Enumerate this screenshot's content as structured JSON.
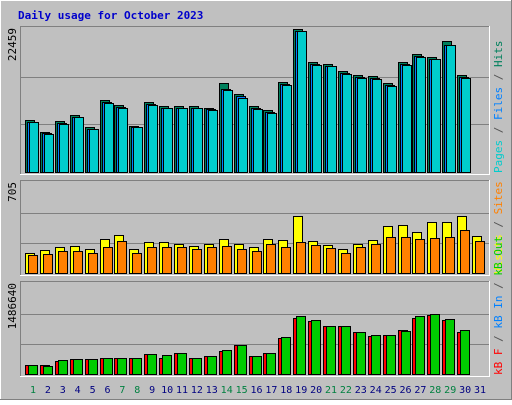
{
  "title": "Daily usage for October 2023",
  "colors": {
    "background": "#c0c0c0",
    "title": "#0000cc",
    "border_light": "#ffffff",
    "border_dark": "#808080",
    "grid": "#808080",
    "label_gray": "#555555",
    "weekday": "#000080",
    "weekend": "#008040"
  },
  "days": [
    "1",
    "2",
    "3",
    "4",
    "5",
    "6",
    "7",
    "8",
    "9",
    "10",
    "11",
    "12",
    "13",
    "14",
    "15",
    "16",
    "17",
    "18",
    "19",
    "20",
    "21",
    "22",
    "23",
    "24",
    "25",
    "26",
    "27",
    "28",
    "29",
    "30",
    "31"
  ],
  "weekend_days": [
    1,
    7,
    8,
    14,
    15,
    21,
    22,
    28,
    29
  ],
  "panels": {
    "top": {
      "max_label": "22459",
      "legend": [
        {
          "text": "Pages",
          "color": "#00cccc"
        },
        {
          "text": " / ",
          "color": "#555555"
        },
        {
          "text": "Files",
          "color": "#0080ff"
        },
        {
          "text": " / ",
          "color": "#555555"
        },
        {
          "text": "Hits",
          "color": "#00805c"
        }
      ]
    },
    "middle": {
      "max_label": "705",
      "legend": [
        {
          "text": "Visits",
          "color": "#ffff00"
        },
        {
          "text": " / ",
          "color": "#555555"
        },
        {
          "text": "Sites",
          "color": "#ff8000"
        }
      ]
    },
    "bottom": {
      "max_label": "1486640",
      "legend": [
        {
          "text": "kB F",
          "color": "#ff0000"
        },
        {
          "text": " / ",
          "color": "#555555"
        },
        {
          "text": "kB In",
          "color": "#0080ff"
        },
        {
          "text": " / ",
          "color": "#555555"
        },
        {
          "text": "kB Out",
          "color": "#00cc00"
        }
      ]
    }
  },
  "chart_data": [
    {
      "type": "bar",
      "panel": "top",
      "categories": [
        "1",
        "2",
        "3",
        "4",
        "5",
        "6",
        "7",
        "8",
        "9",
        "10",
        "11",
        "12",
        "13",
        "14",
        "15",
        "16",
        "17",
        "18",
        "19",
        "20",
        "21",
        "22",
        "23",
        "24",
        "25",
        "26",
        "27",
        "28",
        "29",
        "30",
        "31"
      ],
      "ylim": [
        0,
        22459
      ],
      "series": [
        {
          "name": "Hits",
          "color": "#00805c",
          "values": [
            8200,
            6300,
            8000,
            9000,
            7000,
            11300,
            10500,
            7300,
            11000,
            10300,
            10300,
            10300,
            10100,
            13900,
            12300,
            10300,
            9700,
            14100,
            22500,
            17200,
            17000,
            15900,
            15300,
            15100,
            13900,
            17300,
            18500,
            18100,
            20500,
            15300,
            0
          ]
        },
        {
          "name": "Files",
          "color": "#0080ff",
          "values": [
            7900,
            6100,
            7700,
            8700,
            6800,
            11000,
            10200,
            7100,
            10700,
            10100,
            10100,
            10100,
            9900,
            13100,
            11900,
            10000,
            9400,
            13800,
            22200,
            16900,
            16700,
            15500,
            14900,
            14800,
            13600,
            17000,
            18200,
            17800,
            20000,
            14900,
            0
          ]
        },
        {
          "name": "Pages",
          "color": "#00cccc",
          "values": [
            7800,
            6000,
            7600,
            8600,
            6700,
            10900,
            10100,
            7000,
            10600,
            10000,
            10000,
            10000,
            9800,
            12900,
            11700,
            9900,
            9300,
            13700,
            22100,
            16800,
            16600,
            15400,
            14800,
            14600,
            13500,
            16800,
            18100,
            17700,
            19900,
            14800,
            0
          ]
        }
      ]
    },
    {
      "type": "bar",
      "panel": "middle",
      "categories": [
        "1",
        "2",
        "3",
        "4",
        "5",
        "6",
        "7",
        "8",
        "9",
        "10",
        "11",
        "12",
        "13",
        "14",
        "15",
        "16",
        "17",
        "18",
        "19",
        "20",
        "21",
        "22",
        "23",
        "24",
        "25",
        "26",
        "27",
        "28",
        "29",
        "30",
        "31"
      ],
      "ylim": [
        0,
        705
      ],
      "series": [
        {
          "name": "Visits",
          "color": "#ffff00",
          "values": [
            160,
            180,
            200,
            210,
            190,
            270,
            300,
            185,
            240,
            240,
            230,
            210,
            230,
            270,
            230,
            200,
            270,
            255,
            445,
            250,
            220,
            190,
            225,
            260,
            370,
            375,
            320,
            400,
            400,
            445,
            290
          ]
        },
        {
          "name": "Sites",
          "color": "#ff8000",
          "values": [
            140,
            150,
            170,
            175,
            155,
            205,
            250,
            160,
            200,
            205,
            200,
            185,
            205,
            210,
            190,
            175,
            230,
            200,
            245,
            220,
            195,
            160,
            200,
            225,
            280,
            280,
            270,
            275,
            285,
            340,
            250
          ]
        }
      ]
    },
    {
      "type": "bar",
      "panel": "bottom",
      "categories": [
        "1",
        "2",
        "3",
        "4",
        "5",
        "6",
        "7",
        "8",
        "9",
        "10",
        "11",
        "12",
        "13",
        "14",
        "15",
        "16",
        "17",
        "18",
        "19",
        "20",
        "21",
        "22",
        "23",
        "24",
        "25",
        "26",
        "27",
        "28",
        "29",
        "30",
        "31"
      ],
      "ylim": [
        0,
        1486640
      ],
      "series": [
        {
          "name": "kB F",
          "color": "#ff0000",
          "values": [
            150000,
            150000,
            220000,
            250000,
            250000,
            260000,
            270000,
            270000,
            330000,
            270000,
            340000,
            270000,
            290000,
            380000,
            480000,
            290000,
            340000,
            600000,
            930000,
            870000,
            800000,
            790000,
            690000,
            630000,
            640000,
            730000,
            930000,
            970000,
            890000,
            700000,
            0
          ]
        },
        {
          "name": "kB Out",
          "color": "#00cc00",
          "values": [
            150000,
            140000,
            230000,
            250000,
            250000,
            260000,
            270000,
            270000,
            330000,
            310000,
            340000,
            270000,
            300000,
            390000,
            480000,
            300000,
            340000,
            610000,
            950000,
            900000,
            800000,
            790000,
            700000,
            640000,
            640000,
            710000,
            950000,
            990000,
            910000,
            720000,
            0
          ]
        }
      ]
    }
  ]
}
